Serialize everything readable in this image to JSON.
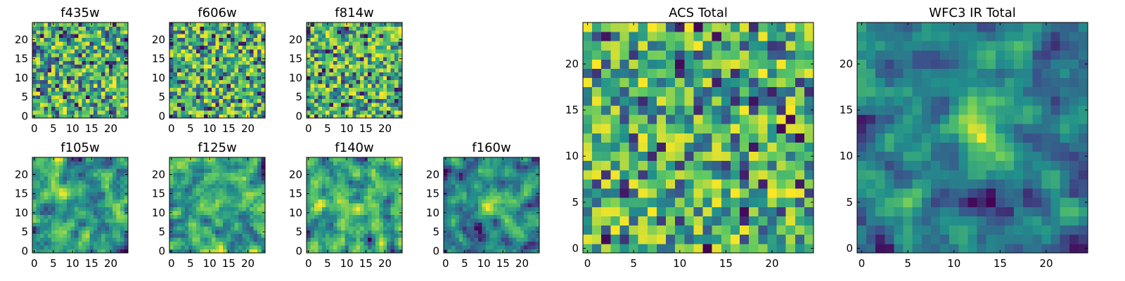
{
  "figure": {
    "colormap": "viridis",
    "colormap_stops": [
      "#440154",
      "#3b528b",
      "#21918c",
      "#5ec962",
      "#fde725"
    ]
  },
  "chart_data": [
    {
      "type": "heatmap",
      "title": "f435w",
      "xticks": [
        0,
        5,
        10,
        15,
        20
      ],
      "yticks": [
        0,
        5,
        10,
        15,
        20
      ],
      "xlim": [
        -0.5,
        24.5
      ],
      "ylim": [
        -0.5,
        24.5
      ],
      "grid_size": [
        25,
        25
      ],
      "seed": 11,
      "structure": "uniform noise",
      "value_range": [
        0,
        1
      ]
    },
    {
      "type": "heatmap",
      "title": "f606w",
      "xticks": [
        0,
        5,
        10,
        15,
        20
      ],
      "yticks": [
        0,
        5,
        10,
        15,
        20
      ],
      "xlim": [
        -0.5,
        24.5
      ],
      "ylim": [
        -0.5,
        24.5
      ],
      "grid_size": [
        25,
        25
      ],
      "seed": 23,
      "structure": "uniform noise",
      "value_range": [
        0,
        1
      ]
    },
    {
      "type": "heatmap",
      "title": "f814w",
      "xticks": [
        0,
        5,
        10,
        15,
        20
      ],
      "yticks": [
        0,
        5,
        10,
        15,
        20
      ],
      "xlim": [
        -0.5,
        24.5
      ],
      "ylim": [
        -0.5,
        24.5
      ],
      "grid_size": [
        25,
        25
      ],
      "seed": 37,
      "structure": "uniform noise",
      "value_range": [
        0,
        1
      ]
    },
    {
      "type": "heatmap",
      "title": "f105w",
      "xticks": [
        0,
        5,
        10,
        15,
        20
      ],
      "yticks": [
        0,
        5,
        10,
        15,
        20
      ],
      "xlim": [
        -0.5,
        24.5
      ],
      "ylim": [
        -0.5,
        24.5
      ],
      "grid_size": [
        25,
        25
      ],
      "seed": 41,
      "structure": "smoothed noise",
      "value_range": [
        0,
        1
      ]
    },
    {
      "type": "heatmap",
      "title": "f125w",
      "xticks": [
        0,
        5,
        10,
        15,
        20
      ],
      "yticks": [
        0,
        5,
        10,
        15,
        20
      ],
      "xlim": [
        -0.5,
        24.5
      ],
      "ylim": [
        -0.5,
        24.5
      ],
      "grid_size": [
        25,
        25
      ],
      "seed": 53,
      "structure": "smoothed noise",
      "value_range": [
        0,
        1
      ]
    },
    {
      "type": "heatmap",
      "title": "f140w",
      "xticks": [
        0,
        5,
        10,
        15,
        20
      ],
      "yticks": [
        0,
        5,
        10,
        15,
        20
      ],
      "xlim": [
        -0.5,
        24.5
      ],
      "ylim": [
        -0.5,
        24.5
      ],
      "grid_size": [
        25,
        25
      ],
      "seed": 67,
      "structure": "smoothed noise",
      "value_range": [
        0,
        1
      ]
    },
    {
      "type": "heatmap",
      "title": "f160w",
      "xticks": [
        0,
        5,
        10,
        15,
        20
      ],
      "yticks": [
        0,
        5,
        10,
        15,
        20
      ],
      "xlim": [
        -0.5,
        24.5
      ],
      "ylim": [
        -0.5,
        24.5
      ],
      "grid_size": [
        25,
        25
      ],
      "seed": 79,
      "structure": "smoothed noise with central bright source",
      "value_range": [
        0,
        1
      ]
    },
    {
      "type": "heatmap",
      "title": "ACS Total",
      "xticks": [
        0,
        5,
        10,
        15,
        20
      ],
      "yticks": [
        0,
        5,
        10,
        15,
        20
      ],
      "xlim": [
        -0.5,
        24.5
      ],
      "ylim": [
        -0.5,
        24.5
      ],
      "grid_size": [
        25,
        25
      ],
      "seed": 97,
      "structure": "uniform noise",
      "value_range": [
        0,
        1
      ]
    },
    {
      "type": "heatmap",
      "title": "WFC3 IR Total",
      "xticks": [
        0,
        5,
        10,
        15,
        20
      ],
      "yticks": [
        0,
        5,
        10,
        15,
        20
      ],
      "xlim": [
        -0.5,
        24.5
      ],
      "ylim": [
        -0.5,
        24.5
      ],
      "grid_size": [
        25,
        25
      ],
      "seed": 131,
      "structure": "smoothed noise with bright source near center",
      "value_range": [
        0,
        1
      ]
    }
  ]
}
